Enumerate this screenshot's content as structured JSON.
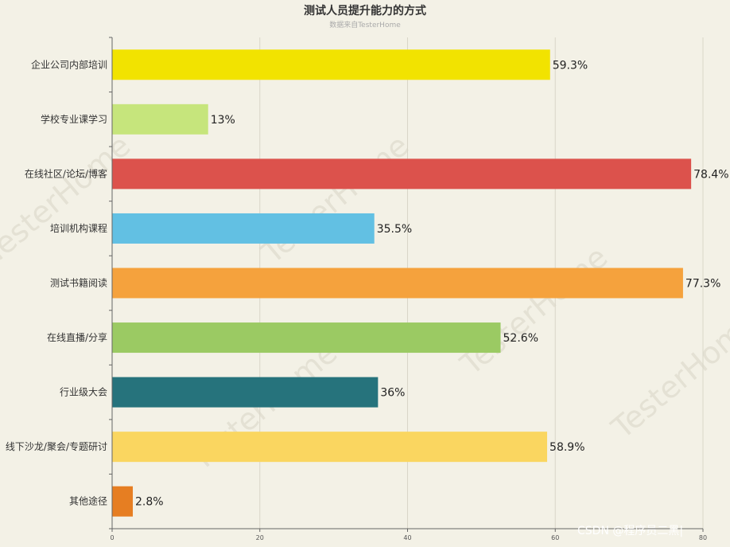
{
  "chart_data": {
    "type": "bar",
    "orientation": "horizontal",
    "title": "测试人员提升能力的方式",
    "subtitle": "数据来自TesterHome",
    "categories": [
      "企业公司内部培训",
      "学校专业课学习",
      "在线社区/论坛/博客",
      "培训机构课程",
      "测试书籍阅读",
      "在线直播/分享",
      "行业级大会",
      "线下沙龙/聚会/专题研讨",
      "其他途径"
    ],
    "values": [
      59.3,
      13,
      78.4,
      35.5,
      77.3,
      52.6,
      36,
      58.9,
      2.8
    ],
    "value_labels": [
      "59.3%",
      "13%",
      "78.4%",
      "35.5%",
      "77.3%",
      "52.6%",
      "36%",
      "58.9%",
      "2.8%"
    ],
    "colors": [
      "#f2e300",
      "#c6e57c",
      "#dc524c",
      "#62c0e3",
      "#f5a23d",
      "#9bca63",
      "#26737c",
      "#fad660",
      "#e67e22"
    ],
    "xlim": [
      0,
      80
    ],
    "x_ticks": [
      "0",
      "20",
      "40",
      "60",
      "80"
    ],
    "grid": true,
    "legend": "none"
  },
  "watermark": "TesterHome",
  "credit": "CSDN @程序员二黑|"
}
